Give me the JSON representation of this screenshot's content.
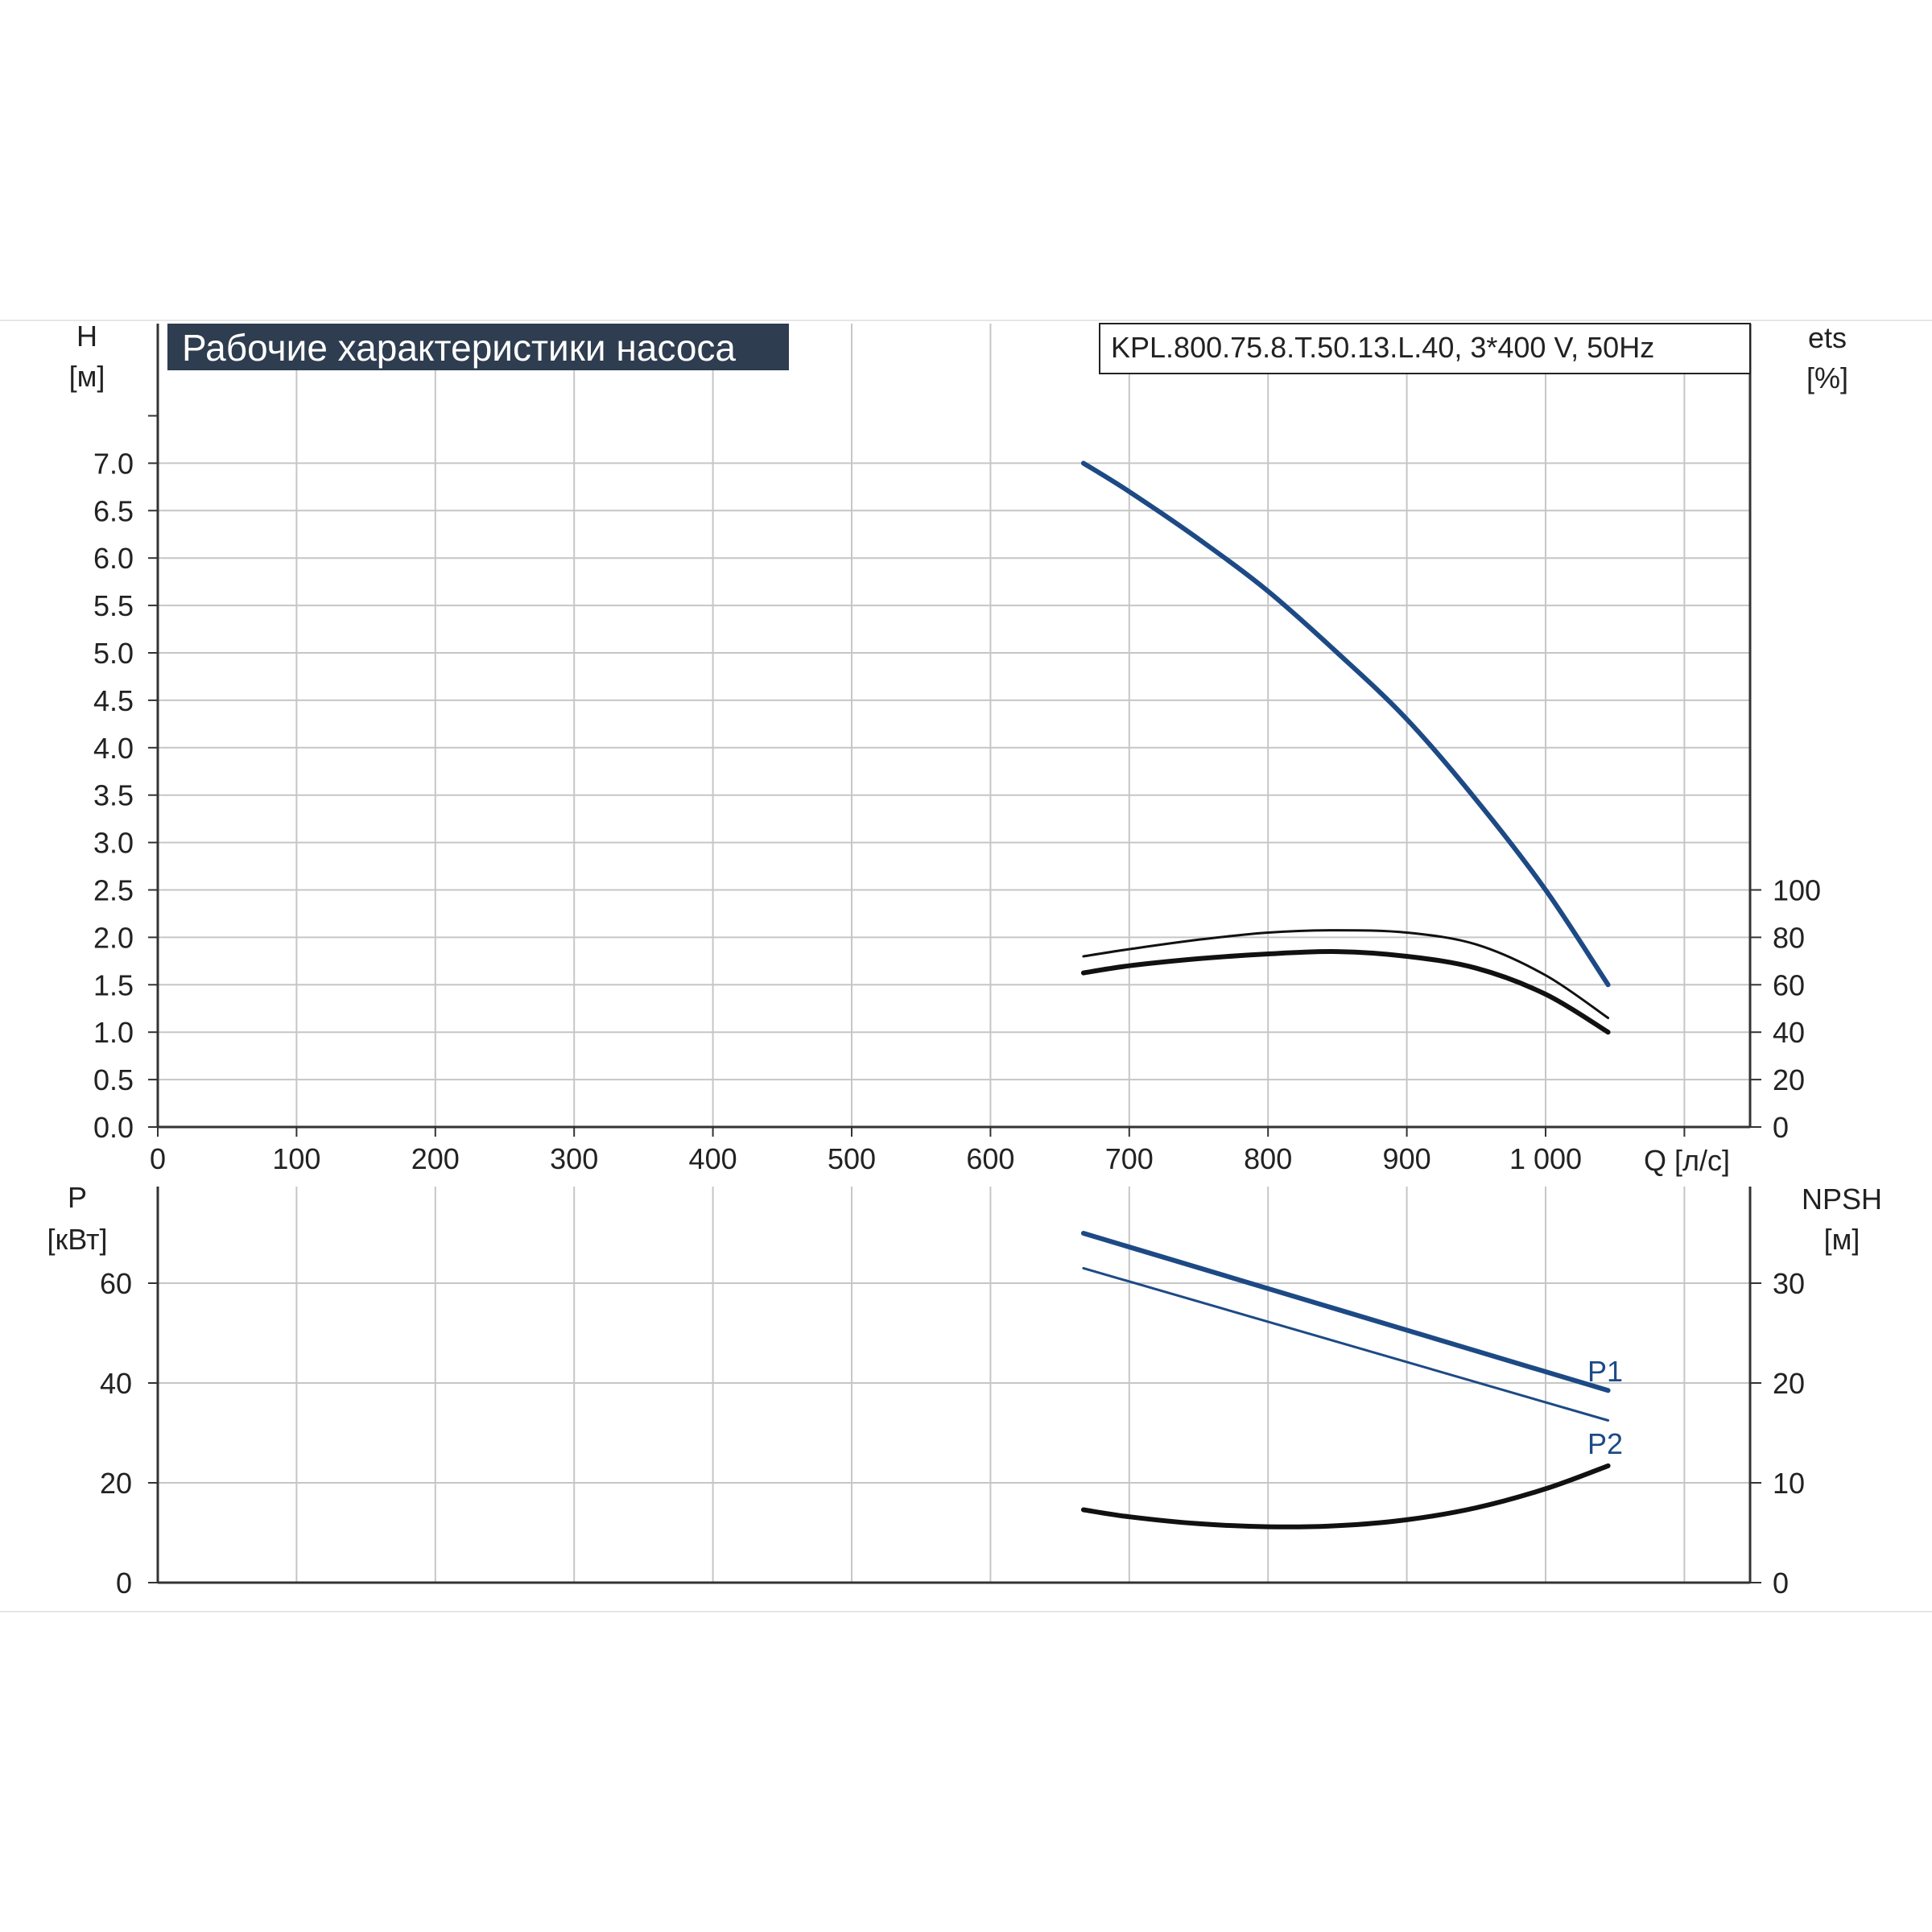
{
  "title": "Рабочие характеристики насоса",
  "model_label": "KPL.800.75.8.T.50.13.L.40, 3*400 V, 50Hz",
  "colors": {
    "grid": "#c6c6c6",
    "axis": "#333333",
    "text": "#222222",
    "title_bg": "#2e3d4f",
    "title_text": "#ffffff",
    "curve_blue": "#1d4a85",
    "curve_black": "#111111"
  },
  "chart_data": [
    {
      "id": "upper",
      "type": "line",
      "x_label": "Q [л/с]",
      "x_ticks": [
        "0",
        "100",
        "200",
        "300",
        "400",
        "500",
        "600",
        "700",
        "800",
        "900",
        "1 000"
      ],
      "xlim": [
        0,
        1150
      ],
      "y_left": {
        "label_line1": "H",
        "label_line2": "[м]",
        "ylim": [
          0,
          7.5
        ],
        "ticks": [
          "0.0",
          "0.5",
          "1.0",
          "1.5",
          "2.0",
          "2.5",
          "3.0",
          "3.5",
          "4.0",
          "4.5",
          "5.0",
          "5.5",
          "6.0",
          "6.5",
          "7.0"
        ]
      },
      "y_right": {
        "label_line1": "ets",
        "label_line2": "[%]",
        "ylim": [
          0,
          100
        ],
        "ticks": [
          "0",
          "20",
          "40",
          "60",
          "80",
          "100"
        ]
      },
      "grid": true,
      "series": [
        {
          "key": "H",
          "axis": "left",
          "color": "blue",
          "stroke": "bold",
          "x": [
            667,
            700,
            750,
            800,
            850,
            900,
            950,
            1000,
            1045
          ],
          "y": [
            7.0,
            6.7,
            6.2,
            5.65,
            5.0,
            4.3,
            3.45,
            2.5,
            1.5
          ]
        },
        {
          "key": "eta_pump",
          "axis": "right",
          "color": "black",
          "stroke": "thin",
          "x": [
            667,
            700,
            750,
            800,
            850,
            900,
            950,
            1000,
            1045
          ],
          "y": [
            72,
            75,
            79,
            82,
            83,
            82,
            77,
            64,
            46
          ]
        },
        {
          "key": "eta_total",
          "axis": "right",
          "color": "black",
          "stroke": "bold",
          "x": [
            667,
            700,
            750,
            800,
            850,
            900,
            950,
            1000,
            1045
          ],
          "y": [
            65,
            68,
            71,
            73,
            74,
            72,
            67,
            56,
            40
          ]
        }
      ]
    },
    {
      "id": "lower",
      "type": "line",
      "xlim": [
        0,
        1150
      ],
      "y_left": {
        "label_line1": "P",
        "label_line2": "[кВт]",
        "ylim": [
          0,
          80
        ],
        "ticks": [
          "0",
          "20",
          "40",
          "60"
        ]
      },
      "y_right": {
        "label_line1": "NPSH",
        "label_line2": "[м]",
        "ylim": [
          0,
          40
        ],
        "ticks": [
          "0",
          "10",
          "20",
          "30"
        ]
      },
      "grid": true,
      "series": [
        {
          "key": "P1",
          "name": "P1",
          "axis": "left",
          "color": "blue",
          "stroke": "bold",
          "x": [
            667,
            1045
          ],
          "y": [
            70,
            38.5
          ]
        },
        {
          "key": "P2",
          "name": "P2",
          "axis": "left",
          "color": "blue",
          "stroke": "thin",
          "x": [
            667,
            1045
          ],
          "y": [
            63,
            32.5
          ]
        },
        {
          "key": "NPSH",
          "axis": "right",
          "color": "black",
          "stroke": "bold",
          "x": [
            667,
            700,
            750,
            800,
            850,
            900,
            950,
            1000,
            1045
          ],
          "y": [
            7.3,
            6.6,
            5.9,
            5.6,
            5.7,
            6.3,
            7.5,
            9.4,
            11.7
          ]
        }
      ]
    }
  ]
}
